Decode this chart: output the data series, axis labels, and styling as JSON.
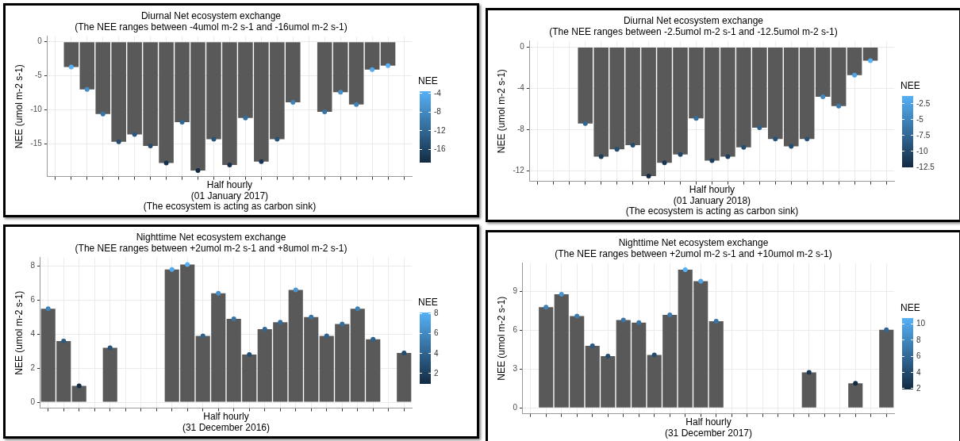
{
  "chart_data": [
    {
      "type": "bar",
      "title": "Diurnal Net ecosystem exchange",
      "subtitle": "(The NEE ranges between -4umol m-2 s-1 and -16umol m-2 s-1)",
      "xlabel": "Half hourly",
      "ylabel": "NEE (umol m-2 s-1)",
      "clabel": "NEE",
      "annotations": [
        "(01 January 2017)",
        "(The ecosystem is acting as carbon sink)"
      ],
      "categories": [
        null,
        null,
        null,
        null,
        null,
        null,
        null,
        null,
        null,
        null,
        null,
        null,
        null,
        null,
        null,
        null,
        null,
        null,
        null,
        null,
        null,
        null,
        null
      ],
      "series": [
        {
          "type": "bar",
          "color": "#595959",
          "values": [
            null,
            -3.7,
            -7.0,
            -10.6,
            -14.7,
            -13.6,
            -15.3,
            -17.8,
            -11.8,
            -18.9,
            -14.3,
            -18.1,
            -11.2,
            -17.6,
            -14.3,
            -8.9,
            null,
            -10.3,
            -7.4,
            -9.2,
            -4.1,
            -3.5,
            null
          ]
        },
        {
          "type": "scatter",
          "marker": "circle",
          "values": [
            null,
            -3.7,
            -7.0,
            -10.6,
            -14.7,
            -13.6,
            -15.3,
            -17.8,
            -11.8,
            -18.9,
            -14.3,
            -18.1,
            -11.2,
            -17.6,
            -14.3,
            -8.9,
            null,
            -10.3,
            -7.4,
            -9.2,
            -4.1,
            -3.5,
            null
          ],
          "colors": [
            null,
            "#56b1f7",
            "#4590ca",
            "#3875a6",
            "#244d70",
            "#2a5a82",
            "#244d70",
            "#16324c",
            "#316794",
            "#132b43",
            "#275379",
            "#16324c",
            "#346e9d",
            "#1a3855",
            "#275379",
            "#3f82b8",
            null,
            "#3875a6",
            "#4590ca",
            "#3f82b8",
            "#53aaee",
            "#56b1f7",
            null
          ]
        }
      ],
      "ylim": [
        -19.8,
        0.8
      ],
      "yticks": [
        -15,
        -10,
        -5,
        0
      ],
      "clim": [
        -18.9,
        -3.5
      ],
      "cticks": [
        -16,
        -12,
        -8,
        -4
      ],
      "grid": true,
      "tick_labels": "y"
    },
    {
      "type": "bar",
      "title": "Diurnal Net ecosystem exchange",
      "subtitle": "(The NEE ranges between -2.5umol m-2 s-1 and -12.5umol m-2 s-1)",
      "xlabel": "Half hourly",
      "ylabel": "NEE (umol m-2 s-1)",
      "clabel": "NEE",
      "annotations": [
        "(01 January 2018)",
        "(The ecosystem is acting as carbon sink)"
      ],
      "categories": [
        null,
        null,
        null,
        null,
        null,
        null,
        null,
        null,
        null,
        null,
        null,
        null,
        null,
        null,
        null,
        null,
        null,
        null,
        null,
        null,
        null,
        null,
        null
      ],
      "series": [
        {
          "type": "bar",
          "color": "#595959",
          "values": [
            null,
            null,
            null,
            -7.4,
            -10.6,
            -9.9,
            -9.5,
            -12.5,
            -11.2,
            -10.4,
            -6.9,
            -11.0,
            -10.6,
            -9.7,
            -7.8,
            -8.9,
            -9.6,
            -8.9,
            -4.8,
            -5.7,
            -2.7,
            -1.3,
            null
          ]
        },
        {
          "type": "scatter",
          "marker": "circle",
          "values": [
            null,
            null,
            null,
            -7.4,
            -10.6,
            -9.9,
            -9.5,
            -12.5,
            -11.2,
            -10.4,
            -6.9,
            -11.0,
            -10.6,
            -9.7,
            -7.8,
            -8.9,
            -9.6,
            -8.9,
            -4.8,
            -5.7,
            -2.7,
            -1.3,
            null
          ],
          "colors": [
            null,
            null,
            null,
            "#316794",
            "#1d3f5e",
            "#244d70",
            "#244d70",
            "#132b43",
            "#1a3855",
            "#204667",
            "#346e9d",
            "#1d3f5e",
            "#1d3f5e",
            "#244d70",
            "#2e618b",
            "#275379",
            "#244d70",
            "#275379",
            "#4289c1",
            "#3b7baf",
            "#4fa4e5",
            "#56b1f7",
            null
          ]
        }
      ],
      "ylim": [
        -13.0,
        0.6
      ],
      "yticks": [
        -12,
        -8,
        -4,
        0
      ],
      "clim": [
        -12.5,
        -1.3
      ],
      "cticks": [
        -12.5,
        -10,
        -7.5,
        -5,
        -2.5
      ],
      "grid": true,
      "tick_labels": "y"
    },
    {
      "type": "bar",
      "title": "Nighttime Net ecosystem exchange",
      "subtitle": "(The NEE ranges between +2umol m-2 s-1 and +8umol m-2 s-1)",
      "xlabel": "Half hourly",
      "ylabel": "NEE (umol m-2 s-1)",
      "clabel": "NEE",
      "annotations": [
        "(31 December 2016)"
      ],
      "categories": [
        null,
        null,
        null,
        null,
        null,
        null,
        null,
        null,
        null,
        null,
        null,
        null,
        null,
        null,
        null,
        null,
        null,
        null,
        null,
        null,
        null,
        null,
        null,
        null
      ],
      "series": [
        {
          "type": "bar",
          "color": "#595959",
          "values": [
            5.5,
            3.6,
            0.96,
            null,
            3.2,
            null,
            null,
            null,
            7.8,
            8.1,
            3.9,
            6.4,
            4.9,
            2.8,
            4.3,
            4.7,
            6.6,
            5.0,
            3.9,
            4.6,
            5.5,
            3.7,
            null,
            2.9
          ]
        },
        {
          "type": "scatter",
          "marker": "circle",
          "values": [
            5.5,
            3.6,
            0.96,
            null,
            3.2,
            null,
            null,
            null,
            7.8,
            8.1,
            3.9,
            6.4,
            4.9,
            2.8,
            4.3,
            4.7,
            6.6,
            5.0,
            3.9,
            4.6,
            5.5,
            3.7,
            null,
            2.9
          ],
          "colors": [
            "#3f82b8",
            "#2a5a82",
            "#132b43",
            null,
            "#275379",
            null,
            null,
            null,
            "#53aaee",
            "#56b1f7",
            "#2e618b",
            "#4590ca",
            "#3875a6",
            "#244d70",
            "#316794",
            "#346e9d",
            "#4996d3",
            "#3875a6",
            "#2e618b",
            "#346e9d",
            "#3f82b8",
            "#2e618b",
            null,
            "#244d70"
          ]
        }
      ],
      "ylim": [
        -0.35,
        8.5
      ],
      "yticks": [
        0,
        2,
        4,
        6,
        8
      ],
      "clim": [
        0.96,
        8.1
      ],
      "cticks": [
        2,
        4,
        6,
        8
      ],
      "grid": true,
      "tick_labels": "y"
    },
    {
      "type": "bar",
      "title": "Nighttime Net ecosystem exchange",
      "subtitle": "(The NEE ranges between +2umol m-2 s-1 and +10umol m-2 s-1)",
      "xlabel": "Half hourly",
      "ylabel": "NEE (umol m-2 s-1)",
      "clabel": "NEE",
      "annotations": [
        "(31 December 2017)"
      ],
      "categories": [
        null,
        null,
        null,
        null,
        null,
        null,
        null,
        null,
        null,
        null,
        null,
        null,
        null,
        null,
        null,
        null,
        null,
        null,
        null,
        null,
        null,
        null,
        null,
        null
      ],
      "series": [
        {
          "type": "bar",
          "color": "#595959",
          "values": [
            null,
            7.8,
            8.8,
            7.1,
            4.8,
            4.0,
            6.8,
            6.6,
            4.1,
            7.2,
            10.7,
            9.8,
            6.7,
            null,
            null,
            null,
            null,
            null,
            2.75,
            null,
            null,
            1.9,
            null,
            6.05
          ]
        },
        {
          "type": "scatter",
          "marker": "circle",
          "values": [
            null,
            7.8,
            8.8,
            7.1,
            4.8,
            4.0,
            6.8,
            6.6,
            4.1,
            7.2,
            10.7,
            9.8,
            6.7,
            null,
            null,
            null,
            null,
            null,
            2.75,
            null,
            null,
            1.9,
            null,
            6.05
          ],
          "colors": [
            null,
            "#3f82b8",
            "#4996d3",
            "#3b7baf",
            "#2a5a82",
            "#244d70",
            "#3875a6",
            "#3875a6",
            "#244d70",
            "#3b7baf",
            "#56b1f7",
            "#4fa4e5",
            "#3875a6",
            null,
            null,
            null,
            null,
            null,
            "#1a3855",
            null,
            null,
            "#132b43",
            null,
            "#316794"
          ]
        }
      ],
      "ylim": [
        -0.45,
        11.2
      ],
      "yticks": [
        0,
        3,
        6,
        9
      ],
      "clim": [
        1.9,
        10.7
      ],
      "cticks": [
        2,
        4,
        6,
        8,
        10
      ],
      "grid": true,
      "tick_labels": "y"
    }
  ]
}
